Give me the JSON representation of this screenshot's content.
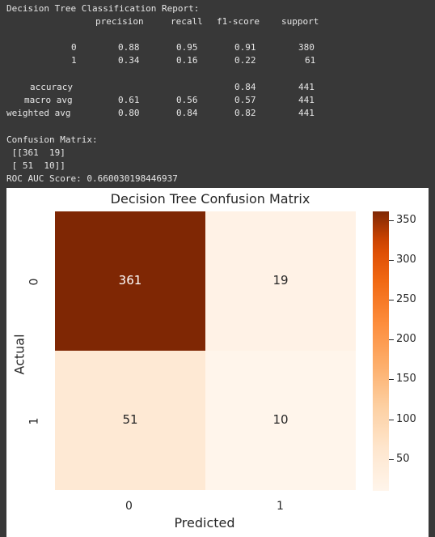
{
  "report": {
    "header": "Decision Tree Classification Report:",
    "columns": [
      "precision",
      "recall",
      "f1-score",
      "support"
    ],
    "rows": [
      {
        "label": "0",
        "precision": "0.88",
        "recall": "0.95",
        "f1": "0.91",
        "support": "380"
      },
      {
        "label": "1",
        "precision": "0.34",
        "recall": "0.16",
        "f1": "0.22",
        "support": "61"
      },
      {
        "label": "accuracy",
        "precision": "",
        "recall": "",
        "f1": "0.84",
        "support": "441"
      },
      {
        "label": "macro avg",
        "precision": "0.61",
        "recall": "0.56",
        "f1": "0.57",
        "support": "441"
      },
      {
        "label": "weighted avg",
        "precision": "0.80",
        "recall": "0.84",
        "f1": "0.82",
        "support": "441"
      }
    ],
    "confusion_header": "Confusion Matrix:",
    "confusion_line1": " [[361  19]",
    "confusion_line2": " [ 51  10]]",
    "roc_line": "ROC AUC Score: 0.660030198446937"
  },
  "chart_data": {
    "type": "heatmap",
    "title": "Decision Tree Confusion Matrix",
    "xlabel": "Predicted",
    "ylabel": "Actual",
    "x_categories": [
      "0",
      "1"
    ],
    "y_categories": [
      "0",
      "1"
    ],
    "values": [
      [
        361,
        19
      ],
      [
        51,
        10
      ]
    ],
    "colorbar": {
      "min": 10,
      "max": 361,
      "ticks": [
        50,
        100,
        150,
        200,
        250,
        300,
        350
      ],
      "tick_labels": [
        "50",
        "100",
        "150",
        "200",
        "250",
        "300",
        "350"
      ],
      "colormap": "Oranges",
      "low_color": "#fff5eb",
      "high_color": "#7f2704"
    }
  }
}
